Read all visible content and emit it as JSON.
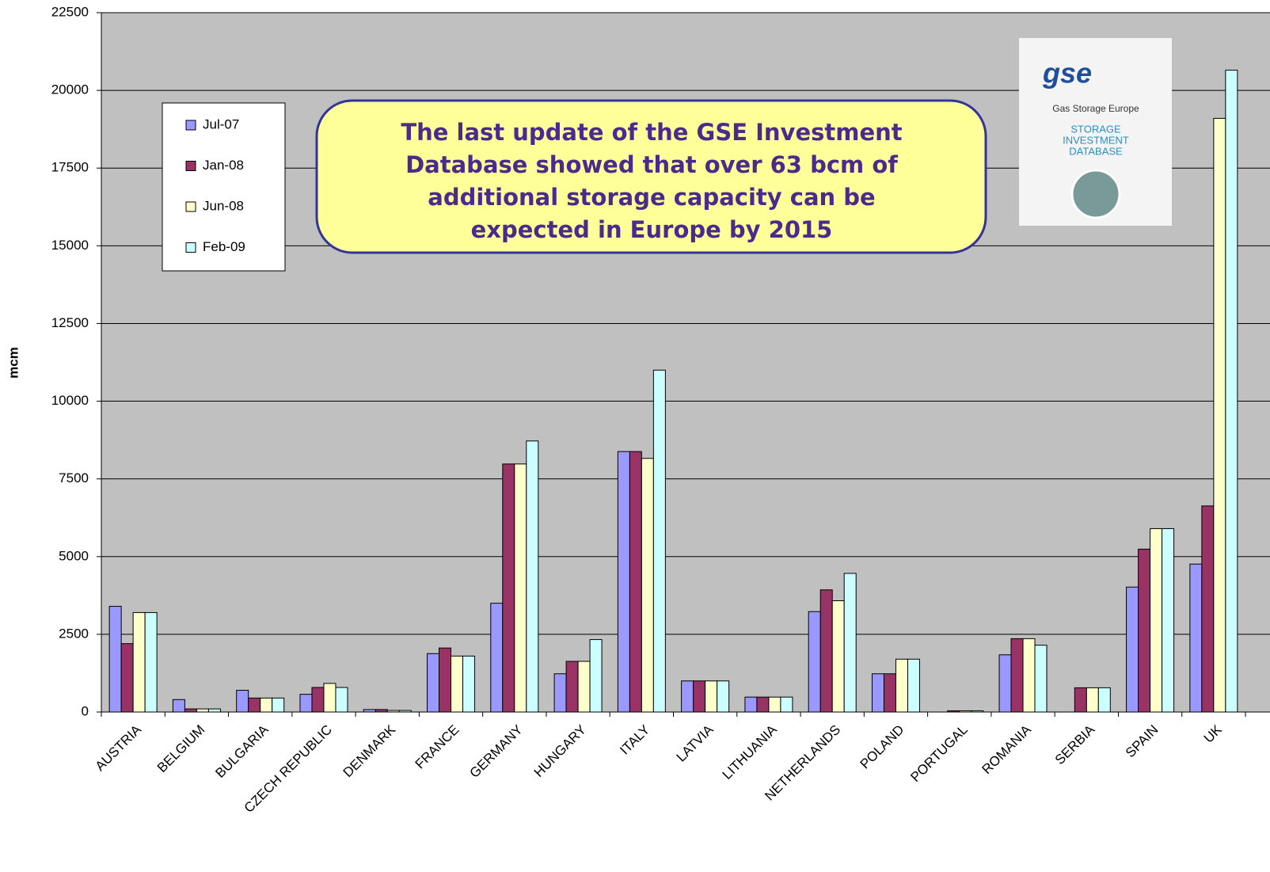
{
  "chart_data": {
    "type": "bar",
    "y_label": "mcm",
    "categories": [
      "AUSTRIA",
      "BELGIUM",
      "BULGARIA",
      "CZECH REPUBLIC",
      "DENMARK",
      "FRANCE",
      "GERMANY",
      "HUNGARY",
      "ITALY",
      "LATVIA",
      "LITHUANIA",
      "NETHERLANDS",
      "POLAND",
      "PORTUGAL",
      "ROMANIA",
      "SERBIA",
      "SPAIN",
      "UK"
    ],
    "series": [
      {
        "name": "Jul-07",
        "color": "#9999ff",
        "values": [
          3400,
          400,
          700,
          570,
          80,
          1880,
          3500,
          1230,
          8380,
          1000,
          480,
          3230,
          1230,
          null,
          1840,
          null,
          4020,
          4760
        ]
      },
      {
        "name": "Jan-08",
        "color": "#993366",
        "values": [
          2200,
          100,
          450,
          790,
          80,
          2060,
          7980,
          1630,
          8380,
          1000,
          480,
          3930,
          1230,
          40,
          2360,
          780,
          5240,
          6630
        ]
      },
      {
        "name": "Jun-08",
        "color": "#ffffcc",
        "values": [
          3200,
          100,
          450,
          920,
          50,
          1800,
          7980,
          1630,
          8160,
          1000,
          480,
          3580,
          1700,
          40,
          2360,
          780,
          5900,
          19100
        ]
      },
      {
        "name": "Feb-09",
        "color": "#ccffff",
        "values": [
          3200,
          100,
          450,
          790,
          50,
          1800,
          8720,
          2330,
          11000,
          1000,
          480,
          4460,
          1700,
          40,
          2150,
          780,
          5900,
          20650
        ]
      }
    ],
    "ylim": [
      0,
      22500
    ],
    "yticks": [
      0,
      2500,
      5000,
      7500,
      10000,
      12500,
      15000,
      17500,
      20000,
      22500
    ],
    "grid": true,
    "legend": "upper-left",
    "annotation_lines": [
      "The last update of the GSE Investment",
      "Database showed that over 63 bcm of",
      "additional storage capacity can be",
      "expected in Europe by 2015"
    ],
    "logo": {
      "brand": "gse",
      "subtitle": "Gas Storage Europe",
      "lines": [
        "STORAGE",
        "INVESTMENT",
        "DATABASE"
      ]
    }
  }
}
